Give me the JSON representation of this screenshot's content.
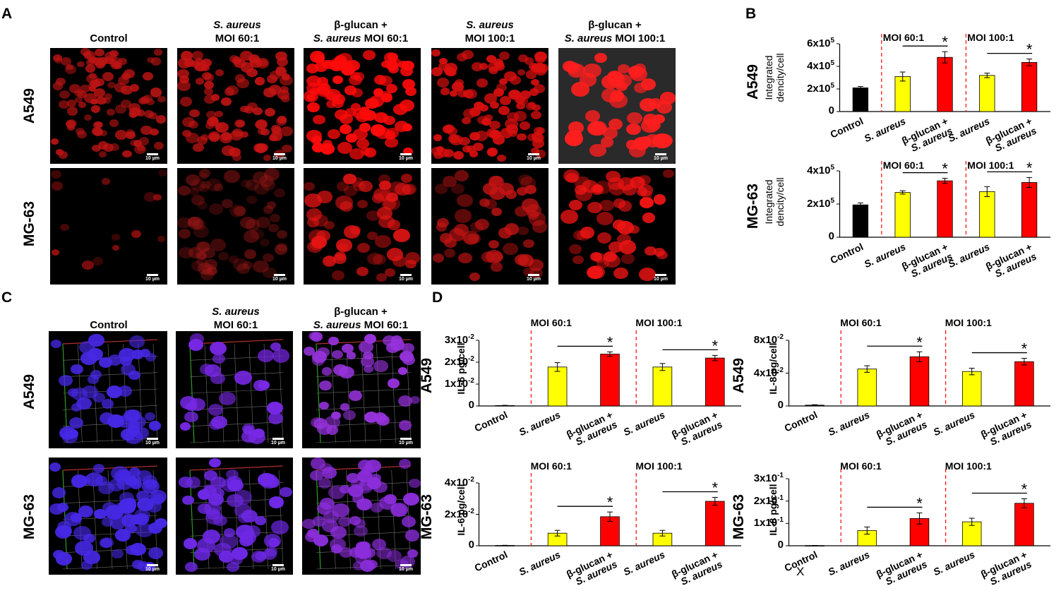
{
  "panels": {
    "a": "A",
    "b": "B",
    "c": "C",
    "d": "D"
  },
  "scale_bar": "10 µm",
  "panel_a": {
    "columns": [
      {
        "line1": "",
        "line2": "Control"
      },
      {
        "line1": "S. aureus",
        "line2": "MOI 60:1"
      },
      {
        "line1": "β-glucan +",
        "line2_italic": "S. aureus",
        "line2": " MOI 60:1"
      },
      {
        "line1": "S. aureus",
        "line2": "MOI 100:1"
      },
      {
        "line1": "β-glucan +",
        "line2_italic": "S. aureus",
        "line2": " MOI 100:1"
      }
    ],
    "rows": [
      "A549",
      "MG-63"
    ]
  },
  "panel_c": {
    "columns": [
      {
        "line1": "",
        "line2": "Control"
      },
      {
        "line1": "S. aureus",
        "line2": "MOI 60:1"
      },
      {
        "line1": "β-glucan +",
        "line2_italic": "S. aureus",
        "line2": " MOI 60:1"
      }
    ],
    "rows": [
      "A549",
      "MG-63"
    ]
  },
  "x_categories": [
    "Control",
    "S. aureus",
    "β-glucan + S. aureus",
    "S. aureus",
    "β-glucan + S. aureus"
  ],
  "moi_groups": [
    "MOI 60:1",
    "MOI 100:1"
  ],
  "significance": "*",
  "stray_mark": "X",
  "colors": {
    "control": "#000000",
    "s_aureus": "#ffff00",
    "glucan": "#ff0000",
    "divider": "#ff0000"
  },
  "chart_data": [
    {
      "id": "B-A549",
      "type": "bar",
      "row_label": "A549",
      "ylabel": "Integrated dencity/cell",
      "yticks": [
        "0",
        "2x10^5",
        "4x10^5",
        "6x10^5"
      ],
      "ylim": [
        0,
        600000
      ],
      "categories": [
        "Control",
        "S. aureus",
        "β-glucan + S. aureus",
        "S. aureus",
        "β-glucan + S. aureus"
      ],
      "values": [
        210000,
        310000,
        480000,
        320000,
        435000
      ],
      "errors": [
        12000,
        40000,
        50000,
        20000,
        30000
      ]
    },
    {
      "id": "B-MG63",
      "type": "bar",
      "row_label": "MG-63",
      "ylabel": "Integrated dencity/cell",
      "yticks": [
        "0",
        "2x10^5",
        "4x10^5"
      ],
      "ylim": [
        0,
        400000
      ],
      "categories": [
        "Control",
        "S. aureus",
        "β-glucan + S. aureus",
        "S. aureus",
        "β-glucan + S. aureus"
      ],
      "values": [
        195000,
        270000,
        340000,
        275000,
        330000
      ],
      "errors": [
        12000,
        10000,
        15000,
        30000,
        30000
      ]
    },
    {
      "id": "D-A549-IL6",
      "type": "bar",
      "row_label": "A549",
      "ylabel": "IL-6 pg/cell",
      "yticks": [
        "0",
        "1x10^-2",
        "2x10^-2",
        "3x10^-2"
      ],
      "ylim": [
        0,
        0.03
      ],
      "categories": [
        "Control",
        "S. aureus",
        "β-glucan + S. aureus",
        "S. aureus",
        "β-glucan + S. aureus"
      ],
      "values": [
        0.0002,
        0.0178,
        0.0237,
        0.0178,
        0.0219
      ],
      "errors": [
        0.0001,
        0.002,
        0.001,
        0.0016,
        0.0012
      ]
    },
    {
      "id": "D-A549-IL8",
      "type": "bar",
      "row_label": "A549",
      "ylabel": "IL-8 pg/cell",
      "yticks": [
        "0",
        "4x10^-2",
        "8x10^-2"
      ],
      "ylim": [
        0,
        0.08
      ],
      "categories": [
        "Control",
        "S. aureus",
        "β-glucan + S. aureus",
        "S. aureus",
        "β-glucan + S. aureus"
      ],
      "values": [
        0.001,
        0.045,
        0.06,
        0.042,
        0.054
      ],
      "errors": [
        0.0005,
        0.004,
        0.006,
        0.004,
        0.004
      ]
    },
    {
      "id": "D-MG63-IL6",
      "type": "bar",
      "row_label": "MG-63",
      "ylabel": "IL-6 pg/cell",
      "yticks": [
        "0",
        "2x10^-2",
        "4x10^-2"
      ],
      "ylim": [
        0,
        0.04
      ],
      "categories": [
        "Control",
        "S. aureus",
        "β-glucan + S. aureus",
        "S. aureus",
        "β-glucan + S. aureus"
      ],
      "values": [
        0.0002,
        0.008,
        0.0185,
        0.008,
        0.0283
      ],
      "errors": [
        0.0001,
        0.0018,
        0.003,
        0.0018,
        0.0025
      ]
    },
    {
      "id": "D-MG63-IL8",
      "type": "bar",
      "row_label": "MG-63",
      "ylabel": "IL-8 pg/cell",
      "yticks": [
        "0",
        "1x10^-1",
        "2x10^-1",
        "3x10^-1"
      ],
      "ylim": [
        0,
        0.3
      ],
      "categories": [
        "Control",
        "S. aureus",
        "β-glucan + S. aureus",
        "S. aureus",
        "β-glucan + S. aureus"
      ],
      "values": [
        0.001,
        0.068,
        0.122,
        0.107,
        0.19
      ],
      "errors": [
        0.0005,
        0.016,
        0.025,
        0.016,
        0.02
      ]
    }
  ]
}
